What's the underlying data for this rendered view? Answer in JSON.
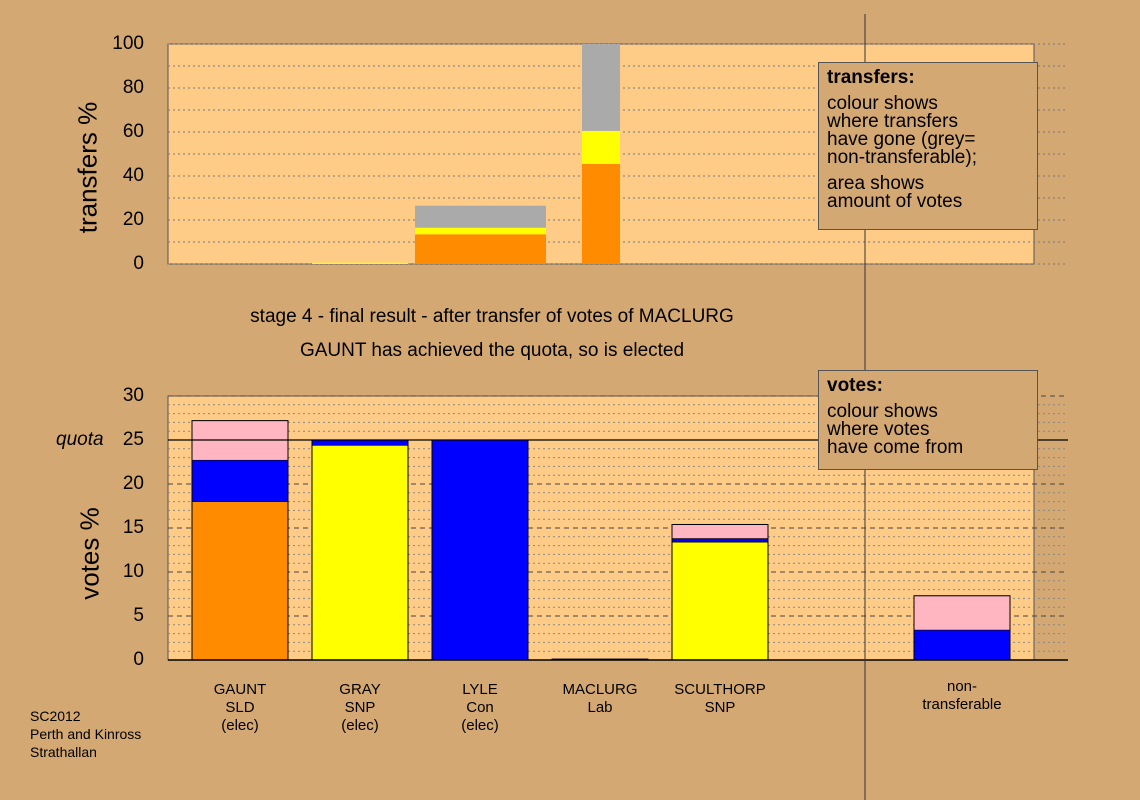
{
  "chart_data": [
    {
      "type": "bar",
      "title": "",
      "ylabel": "transfers %",
      "ylim": [
        0,
        100
      ],
      "yticks": [
        "0",
        "20",
        "40",
        "60",
        "80",
        "100"
      ],
      "categories": [
        "GAUNT",
        "GRAY",
        "LYLE",
        "MACLURG",
        "SCULTHORP",
        "non-transferable"
      ],
      "stacked": true,
      "segments": [
        {
          "candidate": "GRAY",
          "from": 0,
          "to": 0.6,
          "color": "#ffff00"
        },
        {
          "candidate": "LYLE",
          "from": 0,
          "to": 13.5,
          "color": "#ff8c00"
        },
        {
          "candidate": "LYLE",
          "from": 13.5,
          "to": 16.5,
          "color": "#ffff00"
        },
        {
          "candidate": "LYLE",
          "from": 16.5,
          "to": 26.5,
          "color": "#aaaaaa"
        },
        {
          "candidate": "MACLURG",
          "from": 0,
          "to": 45.5,
          "color": "#ff8c00"
        },
        {
          "candidate": "MACLURG",
          "from": 45.5,
          "to": 60.5,
          "color": "#ffff00"
        },
        {
          "candidate": "MACLURG",
          "from": 60.5,
          "to": 100,
          "color": "#aaaaaa"
        }
      ],
      "legend_title": "transfers:",
      "legend_lines_1": [
        "colour shows",
        "where transfers",
        "have gone (grey=",
        "non-transferable);"
      ],
      "legend_lines_2": [
        "area shows",
        "amount of votes"
      ]
    },
    {
      "type": "bar",
      "title": "",
      "ylabel": "votes %",
      "ylim": [
        0,
        30
      ],
      "yticks": [
        "0",
        "5",
        "10",
        "15",
        "20",
        "25",
        "30"
      ],
      "quota": 25,
      "quota_label": "quota",
      "categories": [
        "GAUNT",
        "GRAY",
        "LYLE",
        "MACLURG",
        "SCULTHORP",
        "non-transferable"
      ],
      "stacked": true,
      "segments": [
        {
          "candidate": "GAUNT",
          "from": 0,
          "to": 18,
          "color": "#ff8c00"
        },
        {
          "candidate": "GAUNT",
          "from": 18,
          "to": 22.7,
          "color": "#0000ff"
        },
        {
          "candidate": "GAUNT",
          "from": 22.7,
          "to": 27.2,
          "color": "#ffb6c1"
        },
        {
          "candidate": "GRAY",
          "from": 0,
          "to": 24.4,
          "color": "#ffff00"
        },
        {
          "candidate": "GRAY",
          "from": 24.4,
          "to": 25.0,
          "color": "#0000ff"
        },
        {
          "candidate": "LYLE",
          "from": 0,
          "to": 25.0,
          "color": "#0000ff"
        },
        {
          "candidate": "MACLURG",
          "from": 0,
          "to": 0.1,
          "color": "#ff8c00"
        },
        {
          "candidate": "SCULTHORP",
          "from": 0,
          "to": 13.4,
          "color": "#ffff00"
        },
        {
          "candidate": "SCULTHORP",
          "from": 13.4,
          "to": 13.8,
          "color": "#0000ff"
        },
        {
          "candidate": "SCULTHORP",
          "from": 13.8,
          "to": 15.4,
          "color": "#ffb6c1"
        },
        {
          "candidate": "non-transferable",
          "from": 0,
          "to": 3.4,
          "color": "#0000ff"
        },
        {
          "candidate": "non-transferable",
          "from": 3.4,
          "to": 7.3,
          "color": "#ffb6c1"
        }
      ],
      "legend_title": "votes:",
      "legend_lines": [
        "colour shows",
        "where votes",
        "have come from"
      ]
    }
  ],
  "stage_line_1": "stage 4 - final result - after transfer of votes of MACLURG",
  "stage_line_2": "GAUNT has achieved the quota, so is elected",
  "candidates": [
    {
      "lines": [
        "GAUNT",
        "SLD",
        "(elec)"
      ]
    },
    {
      "lines": [
        "GRAY",
        "SNP",
        "(elec)"
      ]
    },
    {
      "lines": [
        "LYLE",
        "Con",
        "(elec)"
      ]
    },
    {
      "lines": [
        "MACLURG",
        "Lab"
      ]
    },
    {
      "lines": [
        "SCULTHORP",
        "SNP"
      ]
    },
    {
      "lines": [
        "non-",
        "transferable"
      ]
    }
  ],
  "footer": [
    "SC2012",
    "Perth and Kinross",
    "Strathallan"
  ],
  "colors": {
    "background": "#d4a873",
    "panel": "#ffcc88",
    "orange": "#ff8c00",
    "yellow": "#ffff00",
    "blue": "#0000ff",
    "pink": "#ffb6c1",
    "grey": "#aaaaaa"
  }
}
